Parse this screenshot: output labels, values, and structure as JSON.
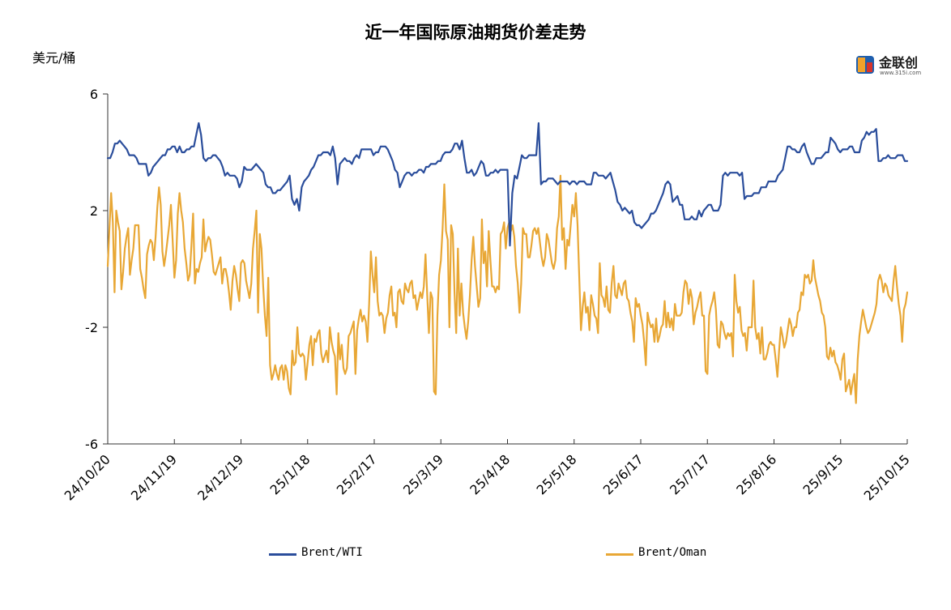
{
  "title": "近一年国际原油期货价差走势",
  "y_unit": "美元/桶",
  "logo": {
    "text": "金联创",
    "subtext": "www.315i.com"
  },
  "chart_data": {
    "type": "line",
    "title": "近一年国际原油期货价差走势",
    "ylabel": "美元/桶",
    "xlabel": "",
    "ylim": [
      -6,
      6
    ],
    "yticks": [
      6,
      2,
      -2,
      -6
    ],
    "x_tick_labels": [
      "24/10/20",
      "24/11/19",
      "24/12/19",
      "25/1/18",
      "25/2/17",
      "25/3/19",
      "25/4/18",
      "25/5/18",
      "25/6/17",
      "25/7/17",
      "25/8/16",
      "25/9/15",
      "25/10/15"
    ],
    "legend_position": "bottom",
    "grid": false,
    "series": [
      {
        "name": "Brent/WTI",
        "color": "#2a4d9b",
        "values": [
          3.8,
          3.8,
          4.0,
          4.3,
          4.3,
          4.4,
          4.3,
          4.2,
          4.1,
          3.9,
          3.9,
          3.9,
          3.8,
          3.6,
          3.6,
          3.6,
          3.6,
          3.2,
          3.3,
          3.5,
          3.6,
          3.7,
          3.8,
          3.9,
          3.9,
          4.1,
          4.1,
          4.2,
          4.2,
          4.0,
          4.2,
          4.0,
          4.0,
          4.1,
          4.1,
          4.2,
          4.2,
          4.6,
          5.0,
          4.6,
          3.8,
          3.7,
          3.8,
          3.8,
          3.9,
          3.9,
          3.8,
          3.7,
          3.5,
          3.2,
          3.3,
          3.2,
          3.2,
          3.2,
          3.1,
          2.8,
          3.0,
          3.5,
          3.4,
          3.4,
          3.4,
          3.5,
          3.6,
          3.5,
          3.4,
          3.3,
          2.9,
          2.8,
          2.8,
          2.6,
          2.6,
          2.7,
          2.7,
          2.8,
          2.9,
          3.0,
          3.2,
          2.4,
          2.2,
          2.4,
          2.0,
          2.8,
          3.0,
          3.1,
          3.2,
          3.4,
          3.5,
          3.7,
          3.9,
          3.9,
          4.0,
          4.0,
          4.0,
          3.9,
          4.2,
          3.8,
          2.9,
          3.6,
          3.7,
          3.8,
          3.7,
          3.7,
          3.6,
          3.8,
          3.9,
          3.8,
          4.1,
          4.1,
          4.1,
          4.1,
          4.1,
          3.9,
          4.0,
          4.0,
          4.2,
          4.2,
          4.2,
          4.1,
          3.9,
          3.7,
          3.4,
          3.3,
          2.8,
          3.0,
          3.2,
          3.3,
          3.3,
          3.2,
          3.3,
          3.3,
          3.4,
          3.4,
          3.3,
          3.5,
          3.5,
          3.6,
          3.6,
          3.6,
          3.7,
          3.7,
          3.9,
          4.0,
          4.0,
          4.0,
          4.1,
          4.3,
          4.3,
          4.1,
          4.4,
          3.8,
          3.3,
          3.3,
          3.4,
          3.2,
          3.3,
          3.5,
          3.7,
          3.6,
          3.2,
          3.2,
          3.3,
          3.3,
          3.4,
          3.3,
          3.4,
          3.4,
          3.4,
          3.4,
          0.8,
          2.6,
          3.2,
          3.1,
          3.5,
          3.9,
          3.8,
          3.8,
          3.9,
          3.9,
          3.9,
          3.9,
          5.0,
          2.9,
          3.0,
          3.0,
          3.1,
          3.1,
          3.1,
          3.0,
          2.9,
          3.0,
          3.0,
          3.0,
          3.0,
          2.9,
          3.0,
          3.0,
          2.9,
          3.0,
          3.0,
          3.0,
          2.9,
          2.9,
          2.9,
          3.3,
          3.3,
          3.2,
          3.2,
          3.2,
          3.1,
          3.2,
          3.3,
          3.0,
          2.7,
          2.3,
          2.2,
          2.0,
          2.1,
          2.0,
          1.9,
          2.0,
          1.6,
          1.5,
          1.5,
          1.4,
          1.5,
          1.6,
          1.7,
          1.9,
          1.9,
          2.0,
          2.2,
          2.4,
          2.6,
          2.9,
          3.0,
          2.9,
          2.3,
          2.4,
          2.5,
          2.2,
          2.2,
          1.7,
          1.7,
          1.7,
          1.8,
          1.7,
          1.7,
          2.0,
          1.8,
          2.0,
          2.1,
          2.2,
          2.2,
          2.0,
          2.0,
          2.0,
          2.2,
          3.2,
          3.3,
          3.2,
          3.3,
          3.3,
          3.3,
          3.3,
          3.2,
          3.3,
          2.4,
          2.5,
          2.5,
          2.5,
          2.6,
          2.6,
          2.6,
          2.8,
          2.8,
          2.8,
          3.0,
          3.0,
          3.0,
          3.0,
          3.2,
          3.3,
          3.4,
          3.8,
          4.2,
          4.2,
          4.1,
          4.1,
          4.0,
          4.0,
          4.2,
          4.3,
          4.0,
          3.8,
          3.6,
          3.6,
          3.8,
          3.8,
          3.8,
          3.9,
          4.0,
          4.0,
          4.5,
          4.4,
          4.3,
          4.1,
          4.0,
          4.1,
          4.1,
          4.1,
          4.2,
          4.2,
          4.0,
          4.0,
          4.0,
          4.4,
          4.5,
          4.7,
          4.6,
          4.7,
          4.7,
          4.8,
          3.7,
          3.7,
          3.8,
          3.8,
          3.9,
          3.8,
          3.8,
          3.8,
          3.9,
          3.9,
          3.9,
          3.7,
          3.7
        ]
      },
      {
        "name": "Brent/Oman",
        "color": "#e8a735",
        "values": [
          0.1,
          1.4,
          2.6,
          1.6,
          -0.8,
          2.0,
          1.6,
          1.3,
          -0.7,
          -0.1,
          0.7,
          1.1,
          1.4,
          -0.2,
          0.3,
          0.7,
          1.5,
          1.5,
          1.5,
          0.0,
          -0.3,
          -0.7,
          -1.0,
          0.5,
          0.8,
          1.0,
          0.9,
          0.3,
          1.1,
          2.1,
          2.8,
          2.2,
          0.6,
          0.1,
          0.5,
          1.0,
          1.5,
          2.2,
          1.0,
          -0.3,
          0.3,
          1.9,
          2.6,
          2.0,
          1.6,
          0.7,
          0.2,
          -0.4,
          -0.2,
          0.8,
          1.9,
          -0.5,
          0.0,
          -0.1,
          0.2,
          0.4,
          1.7,
          0.6,
          0.9,
          1.1,
          1.0,
          0.5,
          -0.1,
          -0.2,
          0.0,
          0.2,
          0.4,
          -0.5,
          0.0,
          0.0,
          -0.3,
          -0.8,
          -1.4,
          -0.4,
          0.1,
          -0.2,
          -0.7,
          -1.1,
          0.2,
          0.3,
          0.2,
          -0.4,
          -0.7,
          -1.0,
          -0.5,
          0.7,
          1.3,
          2.0,
          -1.5,
          1.2,
          0.7,
          -0.6,
          -1.6,
          -2.3,
          -0.3,
          -3.3,
          -3.8,
          -3.6,
          -3.3,
          -3.6,
          -3.8,
          -3.4,
          -3.3,
          -3.8,
          -3.3,
          -3.5,
          -4.1,
          -4.3,
          -2.8,
          -3.3,
          -3.2,
          -2.0,
          -2.9,
          -3.0,
          -2.9,
          -3.0,
          -3.8,
          -3.2,
          -2.6,
          -2.3,
          -3.3,
          -2.4,
          -2.5,
          -2.2,
          -2.1,
          -2.9,
          -3.2,
          -3.0,
          -2.8,
          -3.2,
          -2.0,
          -2.5,
          -2.8,
          -3.0,
          -4.3,
          -2.2,
          -3.1,
          -2.6,
          -3.4,
          -3.6,
          -3.4,
          -2.3,
          -2.2,
          -2.0,
          -1.8,
          -3.6,
          -2.1,
          -1.7,
          -1.4,
          -1.8,
          -1.6,
          -1.8,
          -2.5,
          -1.2,
          0.6,
          -0.2,
          -0.8,
          0.4,
          -1.1,
          -1.6,
          -1.5,
          -1.6,
          -2.2,
          -1.7,
          -1.5,
          -0.9,
          -0.6,
          -1.6,
          -1.5,
          -2.0,
          -0.8,
          -0.7,
          -1.1,
          -1.2,
          -0.5,
          -0.7,
          -0.8,
          -0.5,
          -0.4,
          -1.0,
          -0.9,
          -1.4,
          -1.1,
          -0.8,
          -1.0,
          -0.6,
          0.5,
          -0.9,
          -2.2,
          -0.8,
          -1.0,
          -4.2,
          -4.3,
          -1.6,
          -0.2,
          0.3,
          1.4,
          2.9,
          1.3,
          1.0,
          -2.0,
          1.5,
          1.2,
          -0.8,
          -2.2,
          0.7,
          -1.6,
          -0.5,
          -1.5,
          -2.0,
          -2.4,
          -1.8,
          -0.9,
          0.3,
          1.1,
          0.1,
          -0.6,
          -1.3,
          -1.0,
          1.7,
          0.2,
          0.6,
          -0.6,
          1.3,
          0.3,
          -0.6,
          -0.6,
          -0.8,
          -0.6,
          -0.7,
          1.2,
          1.3,
          1.6,
          0.7,
          1.4,
          1.6,
          1.3,
          1.5,
          1.1,
          0.1,
          -0.5,
          -1.5,
          -0.5,
          1.4,
          1.2,
          1.2,
          0.4,
          0.4,
          0.8,
          1.3,
          1.4,
          1.2,
          1.4,
          0.9,
          0.4,
          0.1,
          0.4,
          1.2,
          1.0,
          0.6,
          0.2,
          0.0,
          0.3,
          1.4,
          1.8,
          3.2,
          1.0,
          1.4,
          0.0,
          1.0,
          0.8,
          1.5,
          2.2,
          1.8,
          2.6,
          1.5,
          -0.3,
          -2.1,
          -1.3,
          -0.8,
          -1.5,
          -1.3,
          -2.1,
          -0.9,
          -1.2,
          -1.6,
          -1.7,
          -2.2,
          0.2,
          -0.9,
          -1.0,
          -1.3,
          -0.6,
          -1.4,
          -1.5,
          -0.5,
          0.1,
          -0.9,
          -1.0,
          -0.5,
          -0.7,
          -0.9,
          -0.5,
          -0.4,
          -1.0,
          -1.1,
          -1.5,
          -1.8,
          -2.5,
          -1.0,
          -1.3,
          -1.2,
          -1.6,
          -1.9,
          -2.5,
          -3.3,
          -1.5,
          -1.8,
          -2.0,
          -1.9,
          -2.5,
          -1.7,
          -2.5,
          -2.3,
          -2.0,
          -1.9,
          -1.1,
          -2.0,
          -1.5,
          -2.0,
          -1.7,
          -2.1,
          -1.2,
          -1.6,
          -1.6,
          -1.6,
          -1.5,
          -0.8,
          -0.4,
          -0.5,
          -1.2,
          -0.7,
          -1.0,
          -1.9,
          -1.5,
          -1.3,
          -1.0,
          -0.8,
          -1.6,
          -1.6,
          -3.5,
          -3.6,
          -1.6,
          -1.3,
          -1.1,
          -0.8,
          -1.4,
          -2.6,
          -2.7,
          -1.8,
          -1.9,
          -2.2,
          -2.4,
          -2.2,
          -2.3,
          -2.2,
          -3.0,
          -0.2,
          -1.1,
          -1.5,
          -1.3,
          -2.1,
          -2.3,
          -2.2,
          -2.8,
          -2.0,
          -2.0,
          -2.0,
          -0.4,
          -2.0,
          -2.4,
          -2.2,
          -2.9,
          -2.0,
          -3.1,
          -3.1,
          -2.9,
          -2.6,
          -2.5,
          -2.6,
          -2.6,
          -3.1,
          -3.7,
          -2.8,
          -2.0,
          -2.3,
          -2.7,
          -2.5,
          -2.1,
          -1.7,
          -1.9,
          -2.3,
          -2.0,
          -2.0,
          -1.5,
          -1.4,
          -0.8,
          -0.9,
          -0.2,
          -0.3,
          -0.2,
          -0.5,
          -0.4,
          0.3,
          -0.3,
          -0.6,
          -0.9,
          -1.1,
          -1.5,
          -1.6,
          -2.0,
          -3.0,
          -3.1,
          -2.7,
          -3.0,
          -2.8,
          -3.2,
          -3.3,
          -3.5,
          -3.8,
          -3.1,
          -2.9,
          -4.2,
          -4.0,
          -3.8,
          -4.3,
          -3.9,
          -3.6,
          -4.6,
          -3.1,
          -2.3,
          -1.8,
          -1.4,
          -1.7,
          -2.0,
          -2.2,
          -2.1,
          -1.9,
          -1.7,
          -1.5,
          -1.2,
          -0.4,
          -0.2,
          -0.4,
          -0.8,
          -0.5,
          -0.6,
          -0.9,
          -1.0,
          -1.1,
          -0.4,
          0.1,
          -0.6,
          -1.2,
          -1.6,
          -2.5,
          -1.4,
          -1.2,
          -0.8
        ]
      }
    ]
  }
}
